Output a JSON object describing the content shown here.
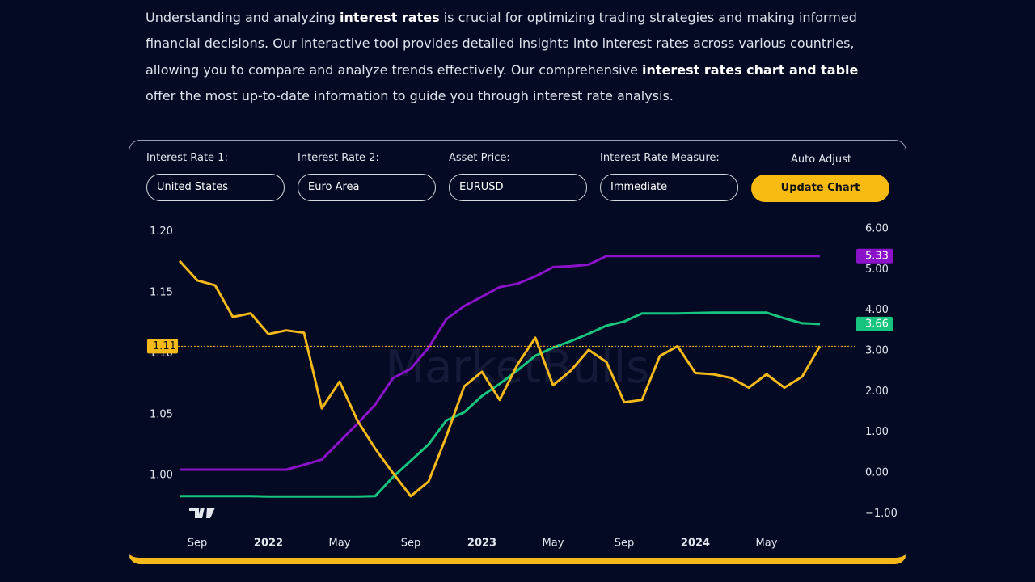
{
  "intro": {
    "segments": [
      {
        "text": "Understanding and analyzing ",
        "bold": false
      },
      {
        "text": "interest rates",
        "bold": true
      },
      {
        "text": " is crucial for optimizing trading strategies and making informed financial decisions. Our interactive tool provides detailed insights into interest rates across various countries, allowing you to compare and analyze trends effectively. Our comprehensive ",
        "bold": false
      },
      {
        "text": "interest rates chart and table",
        "bold": true
      },
      {
        "text": " offer the most up-to-date information to guide you through interest rate analysis.",
        "bold": false
      }
    ]
  },
  "form": {
    "fields": [
      {
        "label": "Interest Rate 1:",
        "value": "United States"
      },
      {
        "label": "Interest Rate 2:",
        "value": "Euro Area"
      },
      {
        "label": "Asset Price:",
        "value": "EURUSD"
      },
      {
        "label": "Interest Rate Measure:",
        "value": "Immediate"
      }
    ],
    "auto_adjust": "Auto Adjust",
    "button": "Update Chart"
  },
  "chart_data": {
    "type": "line",
    "watermark": "MarketBulls",
    "x": [
      "2021-08",
      "2021-09",
      "2021-10",
      "2021-11",
      "2021-12",
      "2022-01",
      "2022-02",
      "2022-03",
      "2022-04",
      "2022-05",
      "2022-06",
      "2022-07",
      "2022-08",
      "2022-09",
      "2022-10",
      "2022-11",
      "2022-12",
      "2023-01",
      "2023-02",
      "2023-03",
      "2023-04",
      "2023-05",
      "2023-06",
      "2023-07",
      "2023-08",
      "2023-09",
      "2023-10",
      "2023-11",
      "2023-12",
      "2024-01",
      "2024-02",
      "2024-03",
      "2024-04",
      "2024-05",
      "2024-06",
      "2024-07",
      "2024-08"
    ],
    "xlim": [
      "2021-06",
      "2024-10"
    ],
    "xticks": [
      {
        "value": "2021-09",
        "label": "Sep"
      },
      {
        "value": "2022-01",
        "label": "2022"
      },
      {
        "value": "2022-05",
        "label": "May"
      },
      {
        "value": "2022-09",
        "label": "Sep"
      },
      {
        "value": "2023-01",
        "label": "2023"
      },
      {
        "value": "2023-05",
        "label": "May"
      },
      {
        "value": "2023-09",
        "label": "Sep"
      },
      {
        "value": "2024-01",
        "label": "2024"
      },
      {
        "value": "2024-05",
        "label": "May"
      }
    ],
    "ylim": [
      0.959,
      1.211
    ],
    "yticks": [
      {
        "value": 1.2,
        "label": "1.20"
      },
      {
        "value": 1.15,
        "label": "1.15"
      },
      {
        "value": 1.1,
        "label": "1.10"
      },
      {
        "value": 1.05,
        "label": "1.05"
      },
      {
        "value": 1.0,
        "label": "1.00"
      }
    ],
    "y2lim": [
      -1.29,
      6.26
    ],
    "y2ticks": [
      {
        "value": 6,
        "label": "6.00"
      },
      {
        "value": 5,
        "label": "5.00"
      },
      {
        "value": 4,
        "label": "4.00"
      },
      {
        "value": 3,
        "label": "3.00"
      },
      {
        "value": 2,
        "label": "2.00"
      },
      {
        "value": 1,
        "label": "1.00"
      },
      {
        "value": 0,
        "label": "0.00"
      },
      {
        "value": -1,
        "label": "−1.00"
      }
    ],
    "series": [
      {
        "color": "#8a12c9",
        "axis": "y2",
        "last_label": "5.33",
        "values": [
          0.08,
          0.08,
          0.08,
          0.08,
          0.08,
          0.08,
          0.08,
          0.2,
          0.33,
          0.77,
          1.21,
          1.68,
          2.33,
          2.56,
          3.08,
          3.78,
          4.1,
          4.33,
          4.57,
          4.65,
          4.83,
          5.06,
          5.08,
          5.12,
          5.33,
          5.33,
          5.33,
          5.33,
          5.33,
          5.33,
          5.33,
          5.33,
          5.33,
          5.33,
          5.33,
          5.33,
          5.33
        ]
      },
      {
        "color": "#17c47e",
        "axis": "y2",
        "last_label": "3.66",
        "values": [
          -0.57,
          -0.57,
          -0.57,
          -0.57,
          -0.57,
          -0.58,
          -0.58,
          -0.58,
          -0.58,
          -0.58,
          -0.58,
          -0.57,
          -0.1,
          0.3,
          0.7,
          1.29,
          1.49,
          1.89,
          2.19,
          2.52,
          2.88,
          3.08,
          3.24,
          3.42,
          3.62,
          3.72,
          3.92,
          3.92,
          3.92,
          3.93,
          3.94,
          3.94,
          3.94,
          3.94,
          3.8,
          3.68,
          3.66
        ]
      },
      {
        "color": "#f5b91a",
        "axis": "y",
        "last_label": "1.11",
        "values": [
          1.176,
          1.16,
          1.156,
          1.13,
          1.133,
          1.116,
          1.119,
          1.117,
          1.055,
          1.077,
          1.045,
          1.022,
          1.002,
          0.983,
          0.995,
          1.032,
          1.073,
          1.085,
          1.062,
          1.091,
          1.113,
          1.074,
          1.086,
          1.103,
          1.093,
          1.06,
          1.062,
          1.098,
          1.106,
          1.084,
          1.083,
          1.08,
          1.072,
          1.083,
          1.072,
          1.081,
          1.106
        ]
      }
    ]
  }
}
